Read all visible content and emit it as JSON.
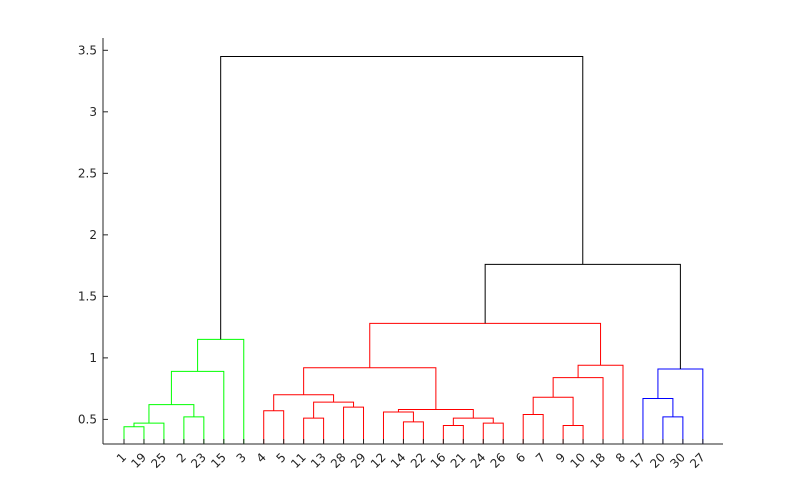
{
  "chart_data": {
    "type": "dendrogram",
    "title": "",
    "xlabel": "",
    "ylabel": "",
    "ylim": [
      0.3,
      3.6
    ],
    "yticks": [
      "0.5",
      "1",
      "1.5",
      "2",
      "2.5",
      "3",
      "3.5"
    ],
    "ytick_values": [
      0.5,
      1.0,
      1.5,
      2.0,
      2.5,
      3.0,
      3.5
    ],
    "leaf_order": [
      "1",
      "19",
      "25",
      "2",
      "23",
      "15",
      "3",
      "4",
      "5",
      "11",
      "13",
      "28",
      "29",
      "12",
      "14",
      "22",
      "16",
      "21",
      "24",
      "26",
      "6",
      "7",
      "9",
      "10",
      "18",
      "8",
      "17",
      "20",
      "30",
      "27"
    ],
    "cluster_colors": {
      "green": "#00ff00",
      "red": "#ff0000",
      "blue": "#0000ff",
      "above_threshold": "#000000"
    },
    "merges": [
      {
        "a": "1",
        "b": "19",
        "height": 0.44,
        "color": "green"
      },
      {
        "a": "m1",
        "b": "25",
        "height": 0.47,
        "color": "green"
      },
      {
        "a": "2",
        "b": "23",
        "height": 0.52,
        "color": "green"
      },
      {
        "a": "m2",
        "b": "m3",
        "height": 0.62,
        "color": "green"
      },
      {
        "a": "m4",
        "b": "15",
        "height": 0.89,
        "color": "green"
      },
      {
        "a": "m5",
        "b": "3",
        "height": 1.15,
        "color": "green"
      },
      {
        "a": "4",
        "b": "5",
        "height": 0.57,
        "color": "red"
      },
      {
        "a": "11",
        "b": "13",
        "height": 0.51,
        "color": "red"
      },
      {
        "a": "28",
        "b": "29",
        "height": 0.6,
        "color": "red"
      },
      {
        "a": "m8",
        "b": "m9",
        "height": 0.64,
        "color": "red"
      },
      {
        "a": "m7",
        "b": "m10",
        "height": 0.7,
        "color": "red"
      },
      {
        "a": "14",
        "b": "22",
        "height": 0.48,
        "color": "red"
      },
      {
        "a": "12",
        "b": "m12",
        "height": 0.56,
        "color": "red"
      },
      {
        "a": "16",
        "b": "21",
        "height": 0.45,
        "color": "red"
      },
      {
        "a": "24",
        "b": "26",
        "height": 0.47,
        "color": "red"
      },
      {
        "a": "m14",
        "b": "m15",
        "height": 0.51,
        "color": "red"
      },
      {
        "a": "m13",
        "b": "m16",
        "height": 0.58,
        "color": "red"
      },
      {
        "a": "m11",
        "b": "m17",
        "height": 0.92,
        "color": "red"
      },
      {
        "a": "6",
        "b": "7",
        "height": 0.54,
        "color": "red"
      },
      {
        "a": "9",
        "b": "10",
        "height": 0.45,
        "color": "red"
      },
      {
        "a": "m19",
        "b": "m20",
        "height": 0.68,
        "color": "red"
      },
      {
        "a": "m21",
        "b": "18",
        "height": 0.84,
        "color": "red"
      },
      {
        "a": "m22",
        "b": "8",
        "height": 0.94,
        "color": "red"
      },
      {
        "a": "m18",
        "b": "m23",
        "height": 1.28,
        "color": "red"
      },
      {
        "a": "20",
        "b": "30",
        "height": 0.52,
        "color": "blue"
      },
      {
        "a": "17",
        "b": "m25",
        "height": 0.67,
        "color": "blue"
      },
      {
        "a": "m26",
        "b": "27",
        "height": 0.91,
        "color": "blue"
      },
      {
        "a": "m24",
        "b": "m27",
        "height": 1.76,
        "color": "above_threshold"
      },
      {
        "a": "m6",
        "b": "m28",
        "height": 3.45,
        "color": "above_threshold"
      }
    ]
  }
}
